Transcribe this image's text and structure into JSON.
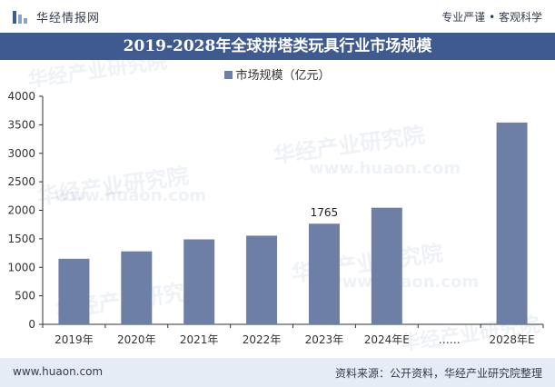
{
  "header": {
    "brand": "华经情报网",
    "slogan": "专业严谨 • 客观科学"
  },
  "footer": {
    "site": "www.huaon.com",
    "source": "资料来源：公开资料，华经产业研究院整理"
  },
  "watermark": {
    "text_cn": "华经产业研究院",
    "text_url": "www.huaon.com"
  },
  "colors": {
    "bar": "#6e7fa6",
    "title_bg": "#3f5a8e",
    "footer_bg": "#e6ecf6"
  },
  "chart_data": {
    "type": "bar",
    "title": "2019-2028年全球拼塔类玩具行业市场规模",
    "legend_position": "top",
    "categories": [
      "2019年",
      "2020年",
      "2021年",
      "2022年",
      "2023年",
      "2024年E",
      "……",
      "2028年E"
    ],
    "series": [
      {
        "name": "市场规模（亿元）",
        "values": [
          1150,
          1280,
          1490,
          1555,
          1765,
          2045,
          null,
          3540
        ]
      }
    ],
    "data_labels": [
      null,
      null,
      null,
      null,
      "1765",
      null,
      null,
      null
    ],
    "ylim": [
      0,
      4000
    ],
    "yticks": [
      0,
      500,
      1000,
      1500,
      2000,
      2500,
      3000,
      3500,
      4000
    ],
    "grid": false
  }
}
